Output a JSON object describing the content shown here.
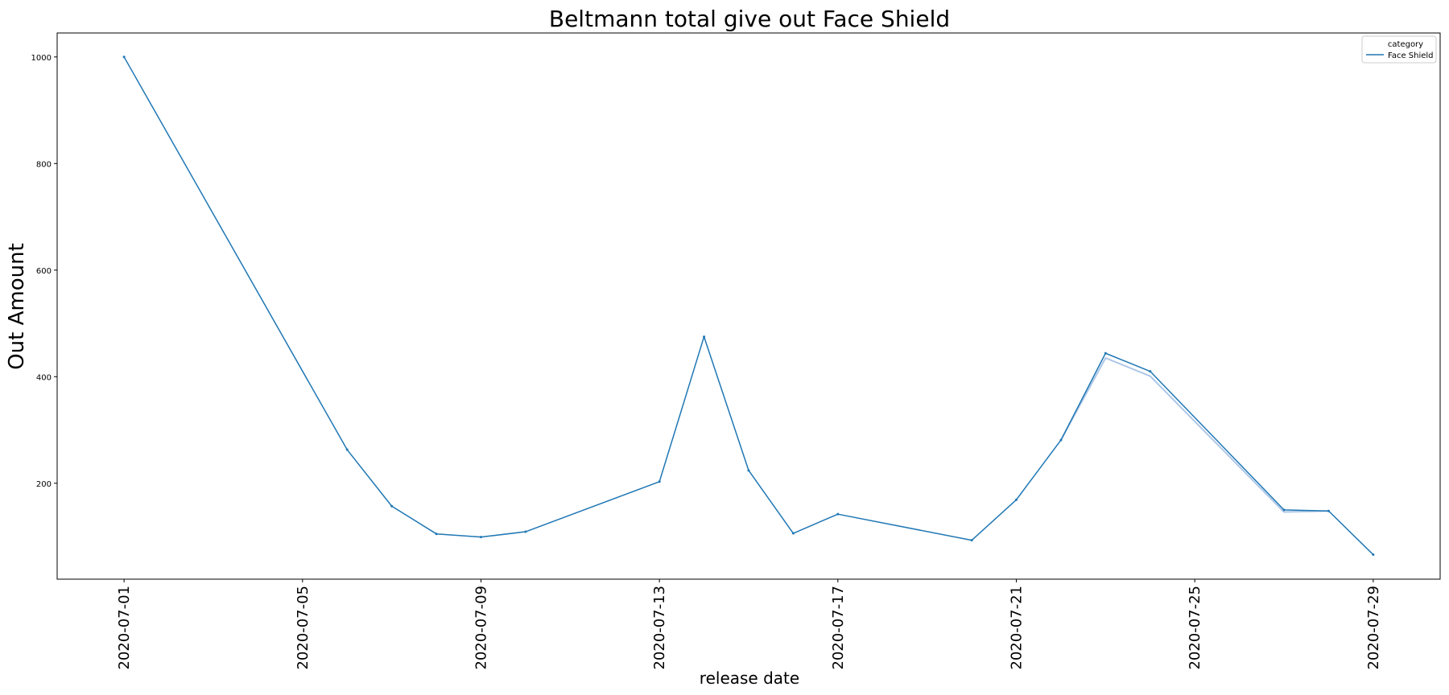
{
  "chart_data": {
    "type": "line",
    "title": "Beltmann total give out Face Shield",
    "xlabel": "release date",
    "ylabel": "Out Amount",
    "x_type": "date",
    "xlim": [
      "2020-06-29T12:00",
      "2020-07-30T12:00"
    ],
    "ylim": [
      20,
      1045
    ],
    "yticks": [
      200,
      400,
      600,
      800,
      1000
    ],
    "xticks": [
      "2020-07-01",
      "2020-07-05",
      "2020-07-09",
      "2020-07-13",
      "2020-07-17",
      "2020-07-21",
      "2020-07-25",
      "2020-07-29"
    ],
    "grid": false,
    "legend": {
      "title": "category",
      "placement": "top-right"
    },
    "series": [
      {
        "name": "Face Shield",
        "color": "#1f77b4",
        "points": [
          {
            "x": "2020-07-01",
            "y": 1000
          },
          {
            "x": "2020-07-06",
            "y": 263
          },
          {
            "x": "2020-07-07",
            "y": 157
          },
          {
            "x": "2020-07-08",
            "y": 105
          },
          {
            "x": "2020-07-09",
            "y": 99
          },
          {
            "x": "2020-07-10",
            "y": 109
          },
          {
            "x": "2020-07-13",
            "y": 203
          },
          {
            "x": "2020-07-14",
            "y": 475
          },
          {
            "x": "2020-07-15",
            "y": 224
          },
          {
            "x": "2020-07-16",
            "y": 106
          },
          {
            "x": "2020-07-17",
            "y": 142
          },
          {
            "x": "2020-07-20",
            "y": 93
          },
          {
            "x": "2020-07-21",
            "y": 169
          },
          {
            "x": "2020-07-22",
            "y": 281
          },
          {
            "x": "2020-07-23",
            "y": 444
          },
          {
            "x": "2020-07-24",
            "y": 410
          },
          {
            "x": "2020-07-27",
            "y": 150
          },
          {
            "x": "2020-07-28",
            "y": 148
          },
          {
            "x": "2020-07-29",
            "y": 66
          }
        ],
        "band_points": [
          {
            "x": "2020-07-23",
            "y": 435
          },
          {
            "x": "2020-07-24",
            "y": 401
          },
          {
            "x": "2020-07-27",
            "y": 146
          }
        ]
      }
    ]
  }
}
